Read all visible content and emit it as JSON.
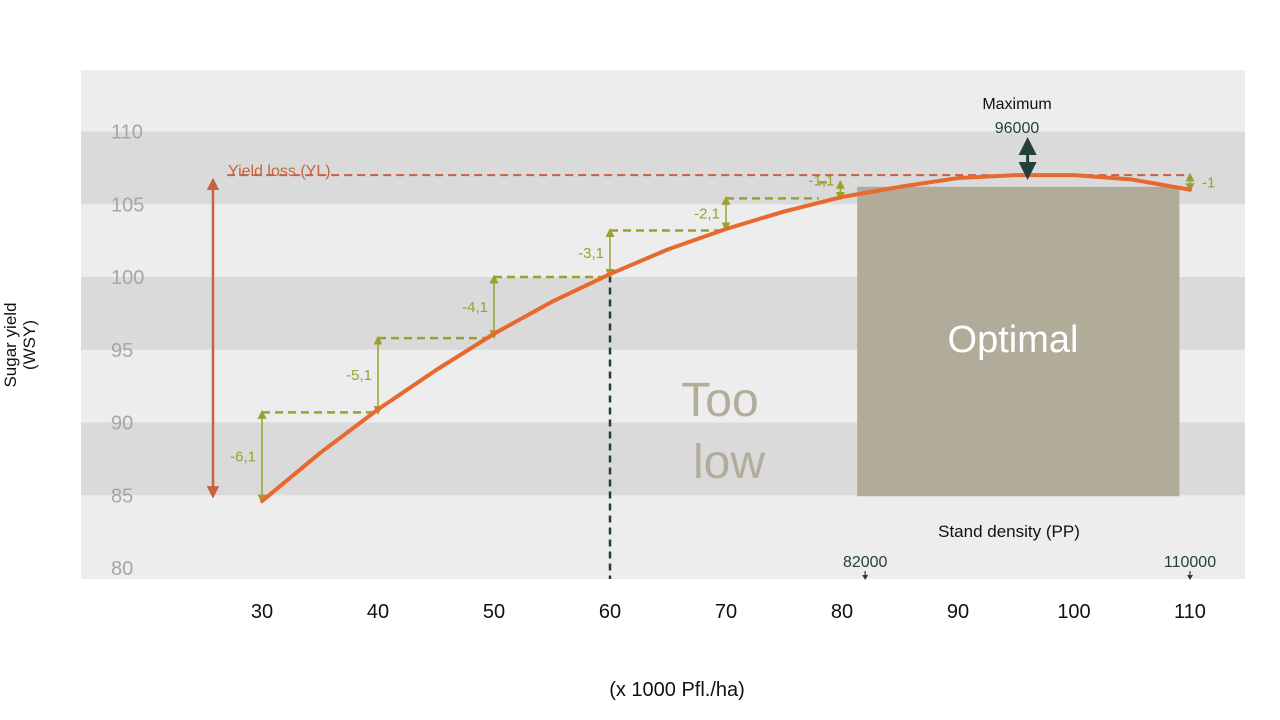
{
  "chart_data": {
    "type": "line",
    "title": "",
    "xlabel": "(x 1000 Pfl./ha)",
    "ylabel_line1": "Sugar yield",
    "ylabel_line2": "(WSY)",
    "xlim": [
      20,
      114
    ],
    "ylim": [
      80,
      112
    ],
    "x_ticks": [
      "30",
      "40",
      "50",
      "60",
      "70",
      "80",
      "90",
      "100",
      "110"
    ],
    "y_ticks": [
      "80",
      "85",
      "90",
      "95",
      "100",
      "105",
      "110"
    ],
    "series": [
      {
        "x": [
          30,
          35,
          40,
          45,
          50,
          55,
          60,
          65,
          70,
          75,
          80,
          85,
          90,
          95,
          100,
          105,
          110
        ],
        "y": [
          84.6,
          87.9,
          90.9,
          93.6,
          96.1,
          98.3,
          100.2,
          101.9,
          103.3,
          104.5,
          105.5,
          106.2,
          106.8,
          107.0,
          107.0,
          106.7,
          106.0
        ]
      }
    ],
    "colors": {
      "curve": "#e8692e",
      "yl": "#c8623f",
      "steps": "#9aa12e",
      "optimal": "#b1ab99",
      "band": "#dadada",
      "band_light": "#ededed"
    },
    "yield_loss": {
      "label": "Yield loss (YL)",
      "y": 107.0,
      "x_from": 27,
      "x_to": 110
    },
    "steps": [
      {
        "x": 30,
        "y": 84.6,
        "x2": 40,
        "top": 90.7,
        "label": "-6,1"
      },
      {
        "x": 40,
        "y": 90.7,
        "x2": 50,
        "top": 95.8,
        "label": "-5,1"
      },
      {
        "x": 50,
        "y": 95.9,
        "x2": 60,
        "top": 100.0,
        "label": "-4,1"
      },
      {
        "x": 60,
        "y": 100.1,
        "x2": 70,
        "top": 103.2,
        "label": "-3,1"
      },
      {
        "x": 70,
        "y": 103.3,
        "x2": 78,
        "top": 105.4,
        "label": "-2,1"
      },
      {
        "x": 78,
        "y": 105.4,
        "x2": 79,
        "top": 106.5,
        "label": "-1,1"
      },
      {
        "x": 110,
        "y": 106.0,
        "x2": 110,
        "top": 107.0,
        "label": "-1"
      }
    ],
    "threshold_x": 60,
    "zone_too_low": [
      "Too",
      "low"
    ],
    "zone_optimal": {
      "label": "Optimal",
      "x_from": 82,
      "x_to": 109,
      "y_from": 85,
      "y_to": 106.2
    },
    "stand_density_label": "Stand density (PP)",
    "maximum": {
      "label": "Maximum",
      "value": "96000",
      "x": 96
    },
    "markers": [
      {
        "label": "82000",
        "x": 82
      },
      {
        "label": "110000",
        "x": 110
      }
    ]
  }
}
